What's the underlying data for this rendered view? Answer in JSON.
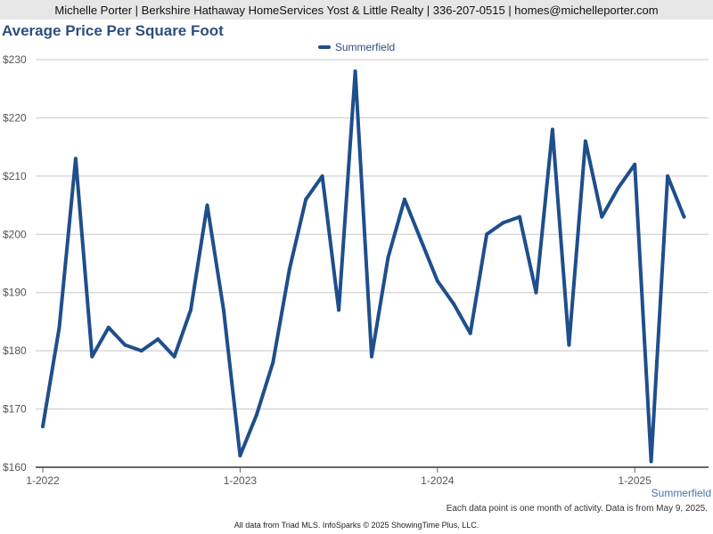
{
  "header": {
    "contact": "Michelle Porter | Berkshire Hathaway HomeServices Yost & Little Realty | 336-207-0515 | homes@michelleporter.com"
  },
  "legend": {
    "label": "Summerfield"
  },
  "series_tag": "Summerfield",
  "footnote": "Each data point is one month of activity. Data is from May 9, 2025.",
  "source": "All data from Triad MLS. InfoSparks © 2025 ShowingTime Plus, LLC.",
  "colors": {
    "line": "#1f4e8c",
    "title": "#2b4f7e",
    "grid": "#c8c8c8",
    "axis": "#666666"
  },
  "chart_data": {
    "type": "line",
    "title": "Average Price Per Square Foot",
    "xlabel": "",
    "ylabel": "",
    "ylim": [
      160,
      230
    ],
    "y_ticks": [
      160,
      170,
      180,
      190,
      200,
      210,
      220,
      230
    ],
    "y_tick_labels": [
      "$160",
      "$170",
      "$180",
      "$190",
      "$200",
      "$210",
      "$220",
      "$230"
    ],
    "x_tick_labels": [
      "1-2022",
      "1-2023",
      "1-2024",
      "1-2025"
    ],
    "x_range": [
      "2022-01",
      "2025-04"
    ],
    "grid": true,
    "legend_position": "top-center",
    "series": [
      {
        "name": "Summerfield",
        "x": [
          "2022-01",
          "2022-02",
          "2022-03",
          "2022-04",
          "2022-05",
          "2022-06",
          "2022-07",
          "2022-08",
          "2022-09",
          "2022-10",
          "2022-11",
          "2022-12",
          "2023-01",
          "2023-02",
          "2023-03",
          "2023-04",
          "2023-05",
          "2023-06",
          "2023-07",
          "2023-08",
          "2023-09",
          "2023-10",
          "2023-11",
          "2023-12",
          "2024-01",
          "2024-02",
          "2024-03",
          "2024-04",
          "2024-05",
          "2024-06",
          "2024-07",
          "2024-08",
          "2024-09",
          "2024-10",
          "2024-11",
          "2024-12",
          "2025-01",
          "2025-02",
          "2025-03",
          "2025-04"
        ],
        "values": [
          167,
          184,
          213,
          179,
          184,
          181,
          180,
          182,
          179,
          187,
          205,
          187,
          162,
          169,
          178,
          194,
          206,
          210,
          187,
          228,
          179,
          196,
          206,
          199,
          192,
          188,
          183,
          200,
          202,
          203,
          190,
          218,
          181,
          216,
          203,
          208,
          212,
          161,
          210,
          203
        ]
      }
    ]
  }
}
